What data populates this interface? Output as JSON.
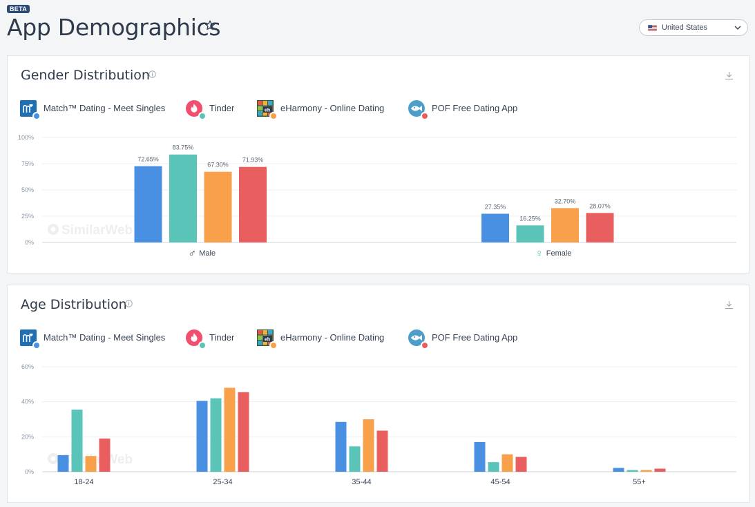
{
  "header": {
    "badge": "BETA",
    "title": "App Demographics",
    "country": "United States"
  },
  "apps": [
    {
      "name": "Match™ Dating - Meet Singles",
      "color": "#4a90e2",
      "icon": "match-app-icon"
    },
    {
      "name": "Tinder",
      "color": "#5bc4b8",
      "icon": "tinder-app-icon"
    },
    {
      "name": "eHarmony - Online Dating",
      "color": "#f9a04b",
      "icon": "eharmony-app-icon"
    },
    {
      "name": "POF Free Dating App",
      "color": "#e95e5e",
      "icon": "pof-app-icon"
    }
  ],
  "watermark": "SimilarWeb",
  "gender": {
    "title": "Gender Distribution",
    "chart_data": {
      "type": "bar",
      "categories": [
        "Male",
        "Female"
      ],
      "category_symbols": [
        "♂",
        "♀"
      ],
      "series": [
        {
          "name": "Match™ Dating - Meet Singles",
          "values": [
            72.65,
            27.35
          ]
        },
        {
          "name": "Tinder",
          "values": [
            83.75,
            16.25
          ]
        },
        {
          "name": "eHarmony - Online Dating",
          "values": [
            67.3,
            32.7
          ]
        },
        {
          "name": "POF Free Dating App",
          "values": [
            71.93,
            28.07
          ]
        }
      ],
      "value_labels": [
        [
          "72.65%",
          "27.35%"
        ],
        [
          "83.75%",
          "16.25%"
        ],
        [
          "67.30%",
          "32.70%"
        ],
        [
          "71.93%",
          "28.07%"
        ]
      ],
      "yticks": [
        "0%",
        "25%",
        "50%",
        "75%",
        "100%"
      ],
      "ylim": [
        0,
        100
      ],
      "grid": true,
      "legend": "top-left"
    }
  },
  "age": {
    "title": "Age Distribution",
    "chart_data": {
      "type": "bar",
      "categories": [
        "18-24",
        "25-34",
        "35-44",
        "45-54",
        "55+"
      ],
      "series": [
        {
          "name": "Match™ Dating - Meet Singles",
          "values": [
            9.5,
            40.5,
            28.5,
            17.0,
            2.2
          ]
        },
        {
          "name": "Tinder",
          "values": [
            35.5,
            42.0,
            14.5,
            5.5,
            1.0
          ]
        },
        {
          "name": "eHarmony - Online Dating",
          "values": [
            9.0,
            48.0,
            30.0,
            10.0,
            1.0
          ]
        },
        {
          "name": "POF Free Dating App",
          "values": [
            19.0,
            45.5,
            23.5,
            8.5,
            1.8
          ]
        }
      ],
      "yticks": [
        "0%",
        "20%",
        "40%",
        "60%"
      ],
      "ylim": [
        0,
        60
      ],
      "grid": true,
      "legend": "top-left"
    }
  }
}
